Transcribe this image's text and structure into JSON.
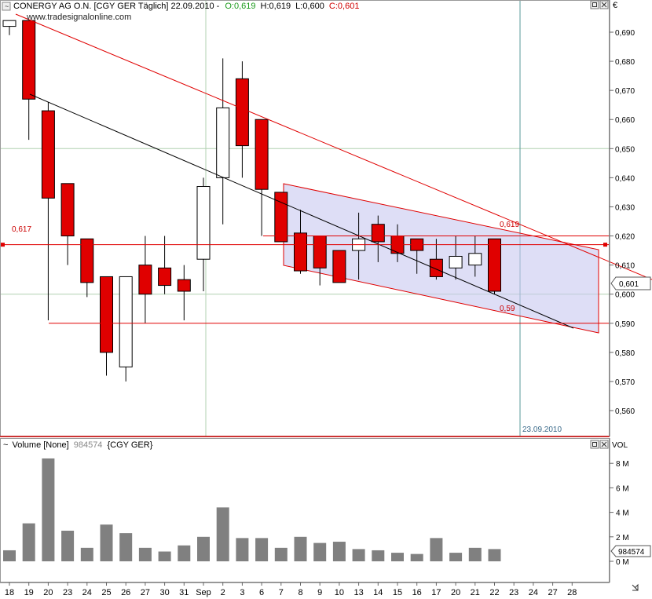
{
  "header": {
    "title": "CONERGY AG O.N. [CGY GER  Täglich] 22.09.2010 -",
    "open": "O:0,619",
    "high": "H:0,619",
    "low": "L:0,600",
    "close": "C:0,601",
    "watermark": "www.tradesignalonline.com",
    "currency": "€"
  },
  "volume_panel": {
    "title": "Volume [None]",
    "value": "984574",
    "instrument": "{CGY GER}",
    "axis_unit": "VOL",
    "last_value_badge": "984574"
  },
  "price_badge": "0,601",
  "annotations": {
    "left_level": "0,617",
    "upper_level": "0,619",
    "lower_level": "0,59",
    "date_label": "23.09.2010"
  },
  "colors": {
    "up_candle": "#ffffff",
    "down_candle": "#e00000",
    "trendline_red": "#e00000",
    "trendline_black": "#000000",
    "channel_fill": "#c8c8f0",
    "volume_bar": "#808080",
    "grid": "#b0d0b0"
  },
  "chart_data": {
    "type": "candlestick",
    "price_ticks": [
      "0,560",
      "0,570",
      "0,580",
      "0,590",
      "0,600",
      "0,610",
      "0,620",
      "0,630",
      "0,640",
      "0,650",
      "0,660",
      "0,670",
      "0,680",
      "0,690"
    ],
    "volume_ticks": [
      "0 M",
      "2 M",
      "4 M",
      "6 M",
      "8 M"
    ],
    "x_labels": [
      "18",
      "19",
      "20",
      "23",
      "24",
      "25",
      "26",
      "27",
      "30",
      "31",
      "Sep",
      "2",
      "3",
      "6",
      "7",
      "8",
      "9",
      "10",
      "13",
      "14",
      "15",
      "16",
      "17",
      "20",
      "21",
      "22",
      "23",
      "24",
      "27",
      "28"
    ],
    "candles": [
      {
        "open": 0.692,
        "high": 0.694,
        "low": 0.689,
        "close": 0.694
      },
      {
        "open": 0.694,
        "high": 0.694,
        "low": 0.653,
        "close": 0.667
      },
      {
        "open": 0.663,
        "high": 0.666,
        "low": 0.591,
        "close": 0.633
      },
      {
        "open": 0.638,
        "high": 0.638,
        "low": 0.61,
        "close": 0.62
      },
      {
        "open": 0.619,
        "high": 0.619,
        "low": 0.599,
        "close": 0.604
      },
      {
        "open": 0.606,
        "high": 0.606,
        "low": 0.572,
        "close": 0.58
      },
      {
        "open": 0.575,
        "high": 0.605,
        "low": 0.57,
        "close": 0.606
      },
      {
        "open": 0.61,
        "high": 0.62,
        "low": 0.59,
        "close": 0.6
      },
      {
        "open": 0.609,
        "high": 0.62,
        "low": 0.6,
        "close": 0.603
      },
      {
        "open": 0.605,
        "high": 0.61,
        "low": 0.591,
        "close": 0.601
      },
      {
        "open": 0.612,
        "high": 0.64,
        "low": 0.601,
        "close": 0.637
      },
      {
        "open": 0.64,
        "high": 0.681,
        "low": 0.624,
        "close": 0.664
      },
      {
        "open": 0.674,
        "high": 0.68,
        "low": 0.64,
        "close": 0.651
      },
      {
        "open": 0.66,
        "high": 0.66,
        "low": 0.62,
        "close": 0.636
      },
      {
        "open": 0.635,
        "high": 0.635,
        "low": 0.618,
        "close": 0.618
      },
      {
        "open": 0.621,
        "high": 0.629,
        "low": 0.607,
        "close": 0.608
      },
      {
        "open": 0.62,
        "high": 0.62,
        "low": 0.603,
        "close": 0.609
      },
      {
        "open": 0.615,
        "high": 0.615,
        "low": 0.604,
        "close": 0.604
      },
      {
        "open": 0.615,
        "high": 0.628,
        "low": 0.605,
        "close": 0.619
      },
      {
        "open": 0.624,
        "high": 0.627,
        "low": 0.611,
        "close": 0.618
      },
      {
        "open": 0.62,
        "high": 0.624,
        "low": 0.611,
        "close": 0.614
      },
      {
        "open": 0.619,
        "high": 0.619,
        "low": 0.607,
        "close": 0.615
      },
      {
        "open": 0.612,
        "high": 0.619,
        "low": 0.605,
        "close": 0.606
      },
      {
        "open": 0.609,
        "high": 0.62,
        "low": 0.605,
        "close": 0.613
      },
      {
        "open": 0.61,
        "high": 0.62,
        "low": 0.606,
        "close": 0.614
      },
      {
        "open": 0.619,
        "high": 0.619,
        "low": 0.6,
        "close": 0.601
      }
    ],
    "volume_millions": [
      0.9,
      3.1,
      8.4,
      2.5,
      1.1,
      3.0,
      2.3,
      1.1,
      0.8,
      1.3,
      2.0,
      4.4,
      1.9,
      1.9,
      1.1,
      2.0,
      1.5,
      1.6,
      1.0,
      0.9,
      0.7,
      0.6,
      1.9,
      0.7,
      1.1,
      1.0
    ],
    "price_range": [
      0.554,
      0.697
    ],
    "volume_range": [
      0,
      9.4
    ],
    "horizontal_lines": [
      0.617,
      0.62,
      0.59
    ],
    "grid": true
  }
}
